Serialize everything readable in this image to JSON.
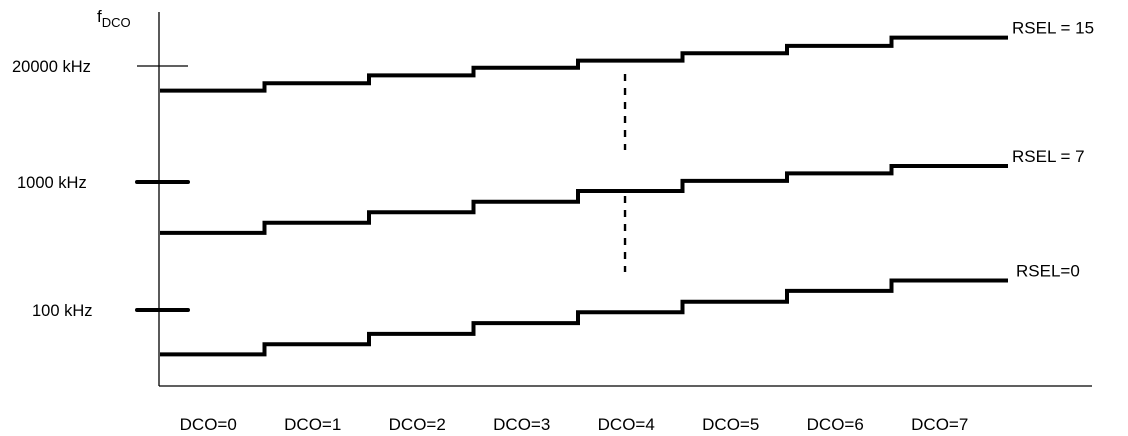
{
  "chart_data": {
    "type": "line",
    "title": "",
    "xlabel": "",
    "ylabel": "fDCO",
    "ylabel_main": "f",
    "ylabel_sub": "DCO",
    "y_scale": "log",
    "y_ticks": [
      {
        "label": "20000 kHz",
        "value": 20000
      },
      {
        "label": "1000 kHz",
        "value": 1000
      },
      {
        "label": "100 kHz",
        "value": 100
      }
    ],
    "categories": [
      "DCO=0",
      "DCO=1",
      "DCO=2",
      "DCO=3",
      "DCO=4",
      "DCO=5",
      "DCO=6",
      "DCO=7"
    ],
    "series": [
      {
        "name": "RSEL = 15",
        "values": [
          10600,
          12800,
          15700,
          19100,
          23000,
          27800,
          33600,
          41600
        ]
      },
      {
        "name": "RSEL = 7",
        "values": [
          400,
          480,
          580,
          700,
          850,
          1030,
          1250,
          1510
        ]
      },
      {
        "name": "RSEL=0",
        "values": [
          45,
          54,
          65,
          79,
          96,
          116,
          141,
          170
        ]
      }
    ],
    "grid": false,
    "legend": "inline-right"
  }
}
